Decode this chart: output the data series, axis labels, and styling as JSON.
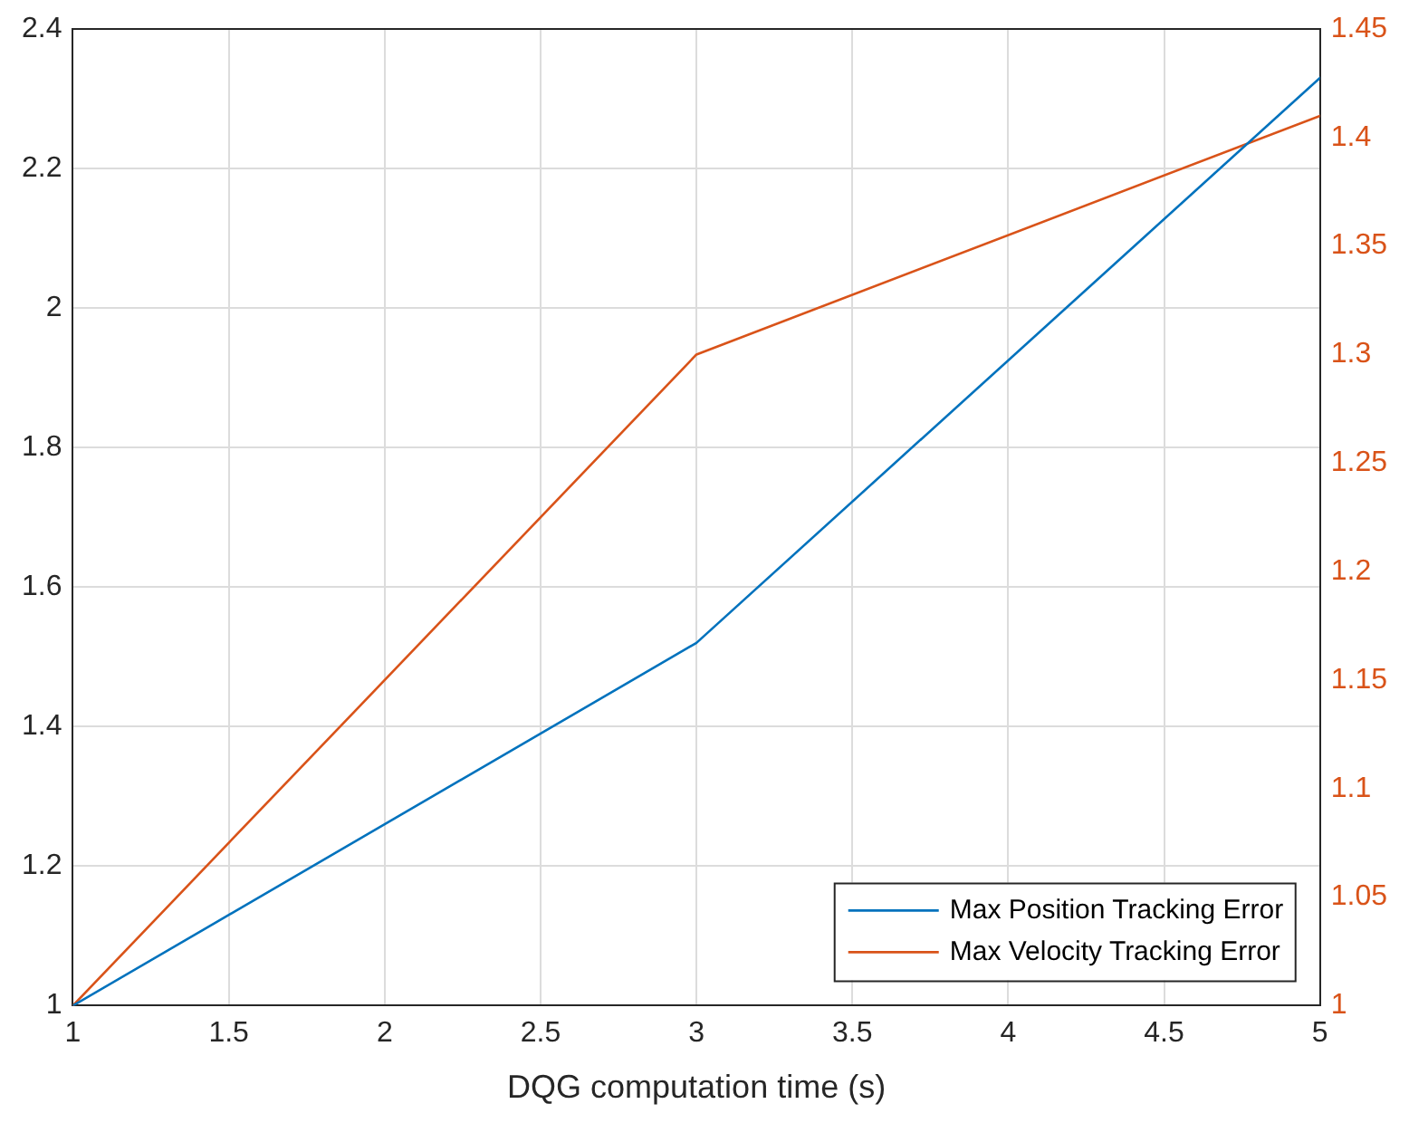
{
  "chart_data": {
    "type": "line",
    "xlabel": "DQG computation time (s)",
    "x": [
      1,
      3,
      5
    ],
    "series": [
      {
        "name": "Max Position Tracking Error",
        "color": "#0072bd",
        "values": [
          1,
          1.52,
          2.33
        ]
      },
      {
        "name": "Max Velocity Tracking Error",
        "color": "#d95319",
        "values": [
          1,
          1.3,
          1.41
        ],
        "axis": "y2"
      }
    ],
    "xlim": [
      1,
      5
    ],
    "xticks": [
      1,
      1.5,
      2,
      2.5,
      3,
      3.5,
      4,
      4.5,
      5
    ],
    "ylim": [
      1,
      2.4
    ],
    "yticks": [
      1,
      1.2,
      1.4,
      1.6,
      1.8,
      2,
      2.2,
      2.4
    ],
    "y2lim": [
      1,
      1.45
    ],
    "y2ticks": [
      1,
      1.05,
      1.1,
      1.15,
      1.2,
      1.25,
      1.3,
      1.35,
      1.4,
      1.45
    ],
    "grid": true,
    "legend": "bottom right",
    "marker": "none",
    "line_style": "solid"
  }
}
